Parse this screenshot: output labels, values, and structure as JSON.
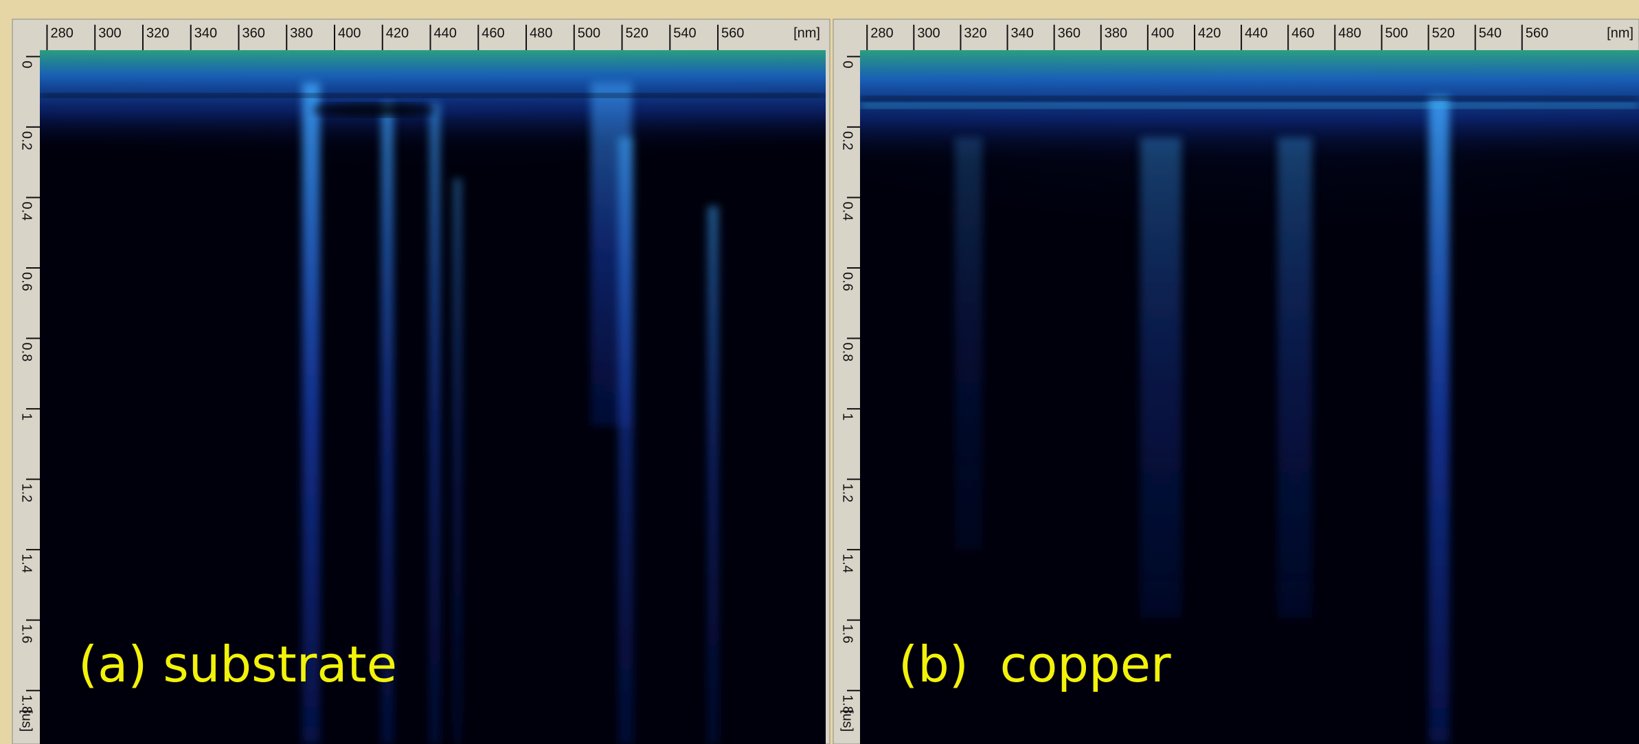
{
  "chart_data": [
    {
      "type": "streak",
      "label": "(a) substrate",
      "x_unit": "[nm]",
      "y_unit": "[us]",
      "xlim": [
        277,
        605
      ],
      "ylim": [
        -0.03,
        1.94
      ],
      "xticks": [
        280,
        300,
        320,
        340,
        360,
        380,
        400,
        420,
        440,
        460,
        480,
        500,
        520,
        540,
        560
      ],
      "yticks": [
        0,
        0.2,
        0.4,
        0.6,
        0.8,
        1,
        1.2,
        1.4,
        1.6,
        1.8
      ]
    },
    {
      "type": "streak",
      "label": "(b)  copper",
      "x_unit": "[nm]",
      "y_unit": "[us]",
      "xlim": [
        277,
        610
      ],
      "ylim": [
        -0.03,
        1.94
      ],
      "xticks": [
        280,
        300,
        320,
        340,
        360,
        380,
        400,
        420,
        440,
        460,
        480,
        500,
        520,
        540,
        560
      ],
      "yticks": [
        0,
        0.2,
        0.4,
        0.6,
        0.8,
        1,
        1.2,
        1.4,
        1.6,
        1.8
      ]
    }
  ]
}
